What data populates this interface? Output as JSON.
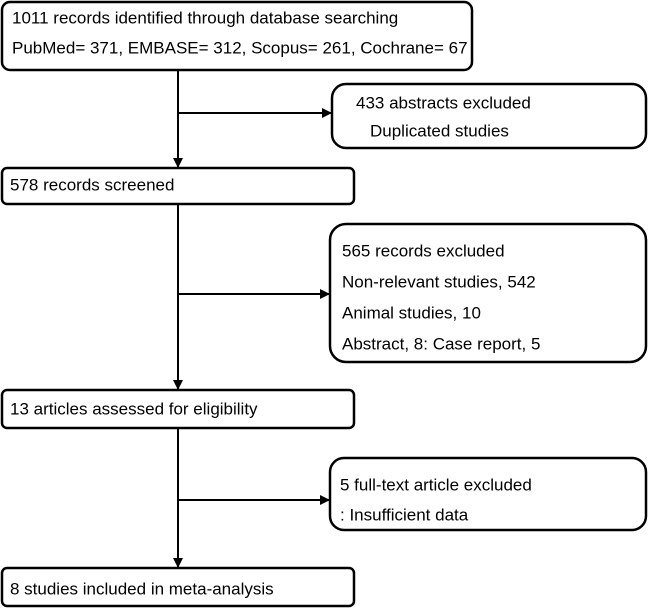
{
  "nodes": [
    {
      "lines": [
        "1011 records identified through database searching",
        "PubMed= 371, EMBASE= 312, Scopus= 261, Cochrane= 67"
      ]
    },
    {
      "lines": [
        "433 abstracts excluded",
        "Duplicated studies"
      ]
    },
    {
      "lines": [
        "578 records screened"
      ]
    },
    {
      "lines": [
        "565 records excluded",
        "Non-relevant studies, 542",
        "Animal studies, 10",
        "Abstract, 8: Case report, 5"
      ]
    },
    {
      "lines": [
        "13 articles assessed for eligibility"
      ]
    },
    {
      "lines": [
        "5 full-text article excluded",
        ": Insufficient data"
      ]
    },
    {
      "lines": [
        "8 studies included in meta-analysis"
      ]
    }
  ]
}
